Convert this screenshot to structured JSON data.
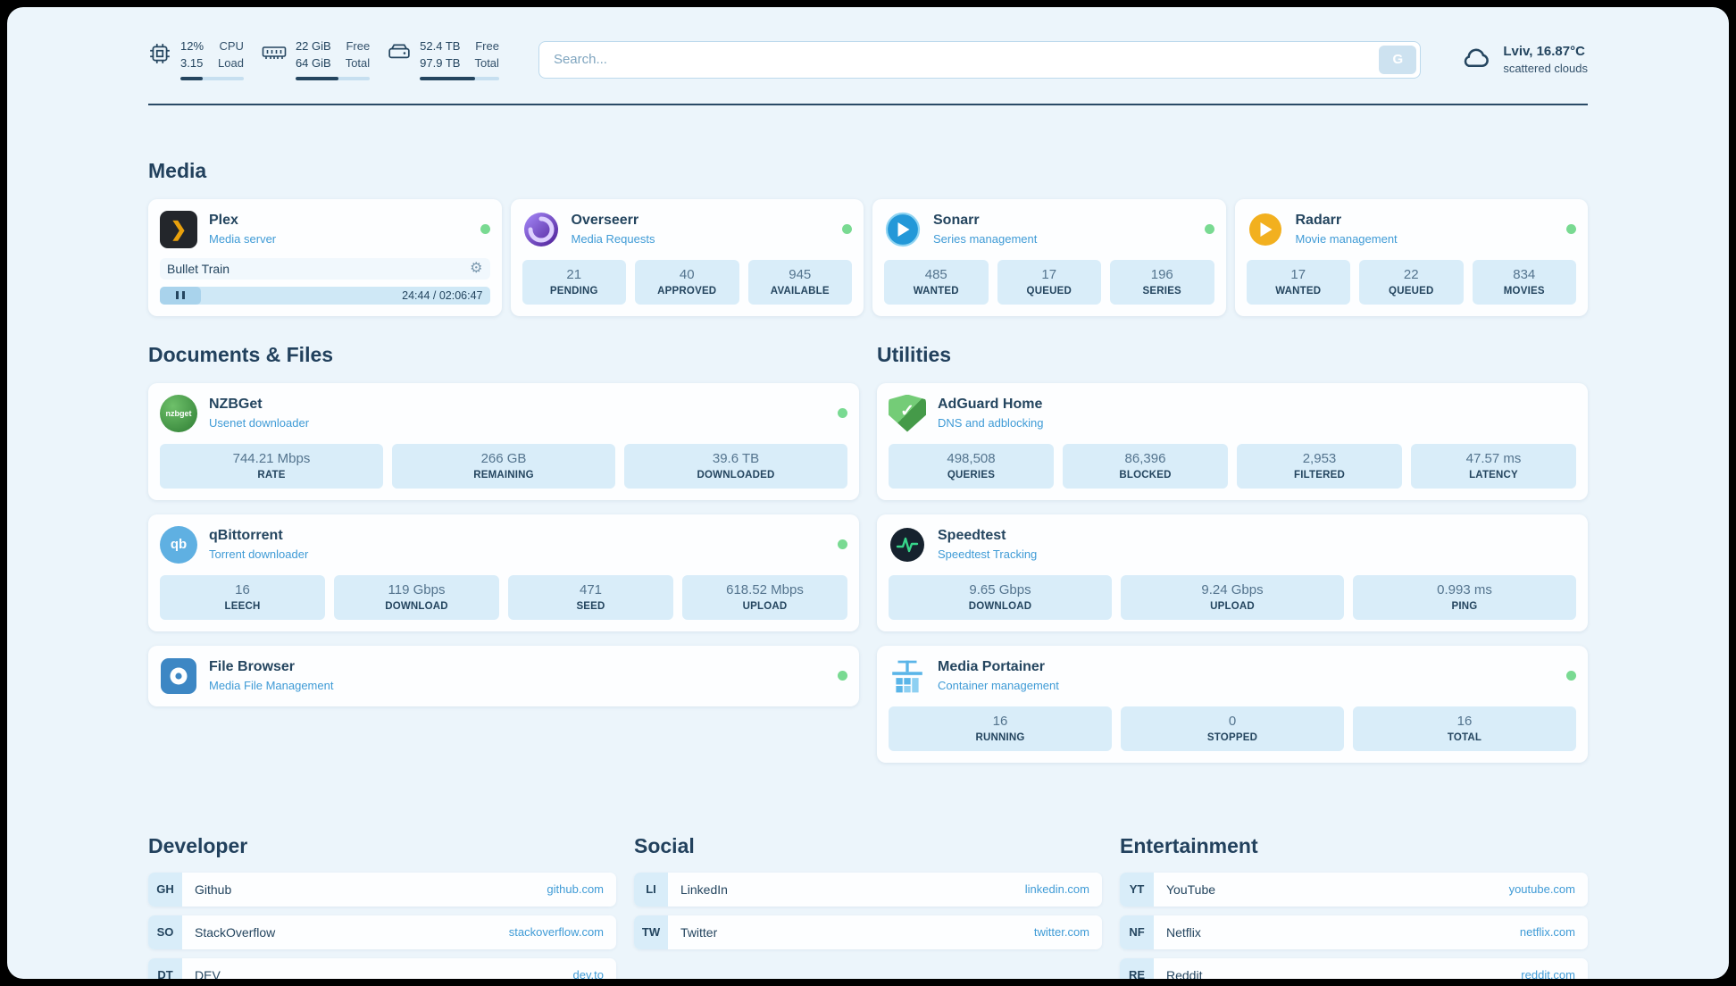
{
  "colors": {
    "background": "#ecf5fb",
    "navy": "#24455f",
    "accent_blue": "#3f9bd6",
    "online_green": "#79da92",
    "stat_bg": "#d9edf9"
  },
  "icons": {
    "plex_glyph": "❯",
    "gear": "⚙",
    "check": "✓",
    "qb_text": "qb",
    "nzbget_text": "nzbget"
  },
  "topbar": {
    "metrics": [
      {
        "v1": "12%",
        "v2": "3.15",
        "l1": "CPU",
        "l2": "Load",
        "progress": 35
      },
      {
        "v1": "22 GiB",
        "v2": "64 GiB",
        "l1": "Free",
        "l2": "Total",
        "progress": 58
      },
      {
        "v1": "52.4 TB",
        "v2": "97.9 TB",
        "l1": "Free",
        "l2": "Total",
        "progress": 70
      }
    ],
    "search": {
      "placeholder": "Search...",
      "button_label": "G"
    },
    "weather": {
      "location": "Lviv, 16.87°C",
      "condition": "scattered clouds"
    }
  },
  "sections": {
    "media": {
      "title": "Media",
      "plex": {
        "name": "Plex",
        "subtitle": "Media server",
        "now_playing": "Bullet Train",
        "time": "24:44 / 02:06:47"
      },
      "overseerr": {
        "name": "Overseerr",
        "subtitle": "Media Requests",
        "stats": [
          {
            "value": "21",
            "label": "PENDING"
          },
          {
            "value": "40",
            "label": "APPROVED"
          },
          {
            "value": "945",
            "label": "AVAILABLE"
          }
        ]
      },
      "sonarr": {
        "name": "Sonarr",
        "subtitle": "Series management",
        "stats": [
          {
            "value": "485",
            "label": "WANTED"
          },
          {
            "value": "17",
            "label": "QUEUED"
          },
          {
            "value": "196",
            "label": "SERIES"
          }
        ]
      },
      "radarr": {
        "name": "Radarr",
        "subtitle": "Movie management",
        "stats": [
          {
            "value": "17",
            "label": "WANTED"
          },
          {
            "value": "22",
            "label": "QUEUED"
          },
          {
            "value": "834",
            "label": "MOVIES"
          }
        ]
      }
    },
    "documents": {
      "title": "Documents & Files",
      "nzbget": {
        "name": "NZBGet",
        "subtitle": "Usenet downloader",
        "stats": [
          {
            "value": "744.21 Mbps",
            "label": "RATE"
          },
          {
            "value": "266 GB",
            "label": "REMAINING"
          },
          {
            "value": "39.6 TB",
            "label": "DOWNLOADED"
          }
        ]
      },
      "qbittorrent": {
        "name": "qBittorrent",
        "subtitle": "Torrent downloader",
        "stats": [
          {
            "value": "16",
            "label": "LEECH"
          },
          {
            "value": "119 Gbps",
            "label": "DOWNLOAD"
          },
          {
            "value": "471",
            "label": "SEED"
          },
          {
            "value": "618.52 Mbps",
            "label": "UPLOAD"
          }
        ]
      },
      "filebrowser": {
        "name": "File Browser",
        "subtitle": "Media File Management"
      }
    },
    "utilities": {
      "title": "Utilities",
      "adguard": {
        "name": "AdGuard Home",
        "subtitle": "DNS and adblocking",
        "stats": [
          {
            "value": "498,508",
            "label": "QUERIES"
          },
          {
            "value": "86,396",
            "label": "BLOCKED"
          },
          {
            "value": "2,953",
            "label": "FILTERED"
          },
          {
            "value": "47.57 ms",
            "label": "LATENCY"
          }
        ]
      },
      "speedtest": {
        "name": "Speedtest",
        "subtitle": "Speedtest Tracking",
        "stats": [
          {
            "value": "9.65 Gbps",
            "label": "DOWNLOAD"
          },
          {
            "value": "9.24 Gbps",
            "label": "UPLOAD"
          },
          {
            "value": "0.993 ms",
            "label": "PING"
          }
        ]
      },
      "portainer": {
        "name": "Media Portainer",
        "subtitle": "Container management",
        "stats": [
          {
            "value": "16",
            "label": "RUNNING"
          },
          {
            "value": "0",
            "label": "STOPPED"
          },
          {
            "value": "16",
            "label": "TOTAL"
          }
        ]
      }
    },
    "bookmarks": [
      {
        "title": "Developer",
        "links": [
          {
            "abbr": "GH",
            "name": "Github",
            "url": "github.com"
          },
          {
            "abbr": "SO",
            "name": "StackOverflow",
            "url": "stackoverflow.com"
          },
          {
            "abbr": "DT",
            "name": "DEV",
            "url": "dev.to"
          }
        ]
      },
      {
        "title": "Social",
        "links": [
          {
            "abbr": "LI",
            "name": "LinkedIn",
            "url": "linkedin.com"
          },
          {
            "abbr": "TW",
            "name": "Twitter",
            "url": "twitter.com"
          }
        ]
      },
      {
        "title": "Entertainment",
        "links": [
          {
            "abbr": "YT",
            "name": "YouTube",
            "url": "youtube.com"
          },
          {
            "abbr": "NF",
            "name": "Netflix",
            "url": "netflix.com"
          },
          {
            "abbr": "RE",
            "name": "Reddit",
            "url": "reddit.com"
          }
        ]
      }
    ]
  }
}
